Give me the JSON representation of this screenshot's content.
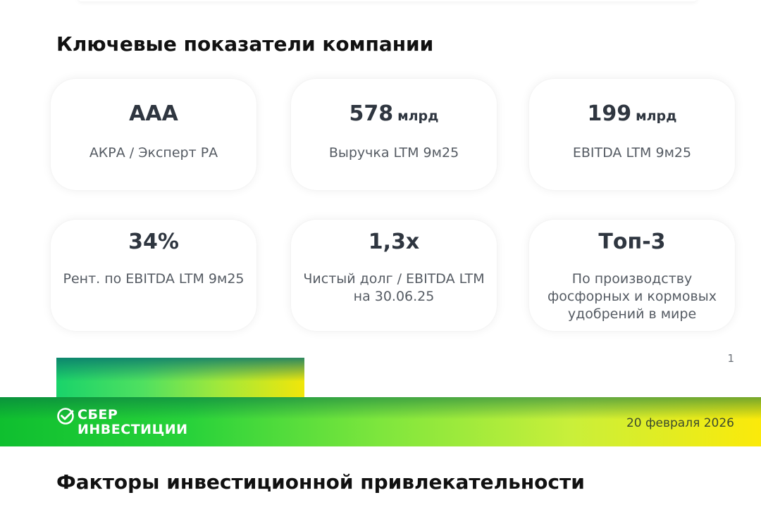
{
  "section_title": "Ключевые показатели компании",
  "metrics": [
    {
      "value": "AAA",
      "unit": "",
      "label": "АКРА / Эксперт РА"
    },
    {
      "value": "578",
      "unit": "млрд",
      "label": "Выручка LTM 9м25"
    },
    {
      "value": "199",
      "unit": "млрд",
      "label": "EBITDA LTM 9м25"
    },
    {
      "value": "34%",
      "unit": "",
      "label": "Рент. по EBITDA LTM 9м25"
    },
    {
      "value": "1,3x",
      "unit": "",
      "label": "Чистый долг / EBITDA LTM на 30.06.25"
    },
    {
      "value": "Топ-3",
      "unit": "",
      "label": "По производству фосфорных и кормовых удобрений в мире"
    }
  ],
  "page_number": "1",
  "footer": {
    "logo_line1": "СБЕР",
    "logo_line2": "ИНВЕСТИЦИИ",
    "logo_icon": "sber-check-icon",
    "date": "20 февраля 2026"
  },
  "next_section_title": "Факторы инвестиционной привлекательности",
  "colors": {
    "text_dark": "#2f3640",
    "brand_green": "#21a038",
    "brand_yellow": "#fbea0a"
  }
}
